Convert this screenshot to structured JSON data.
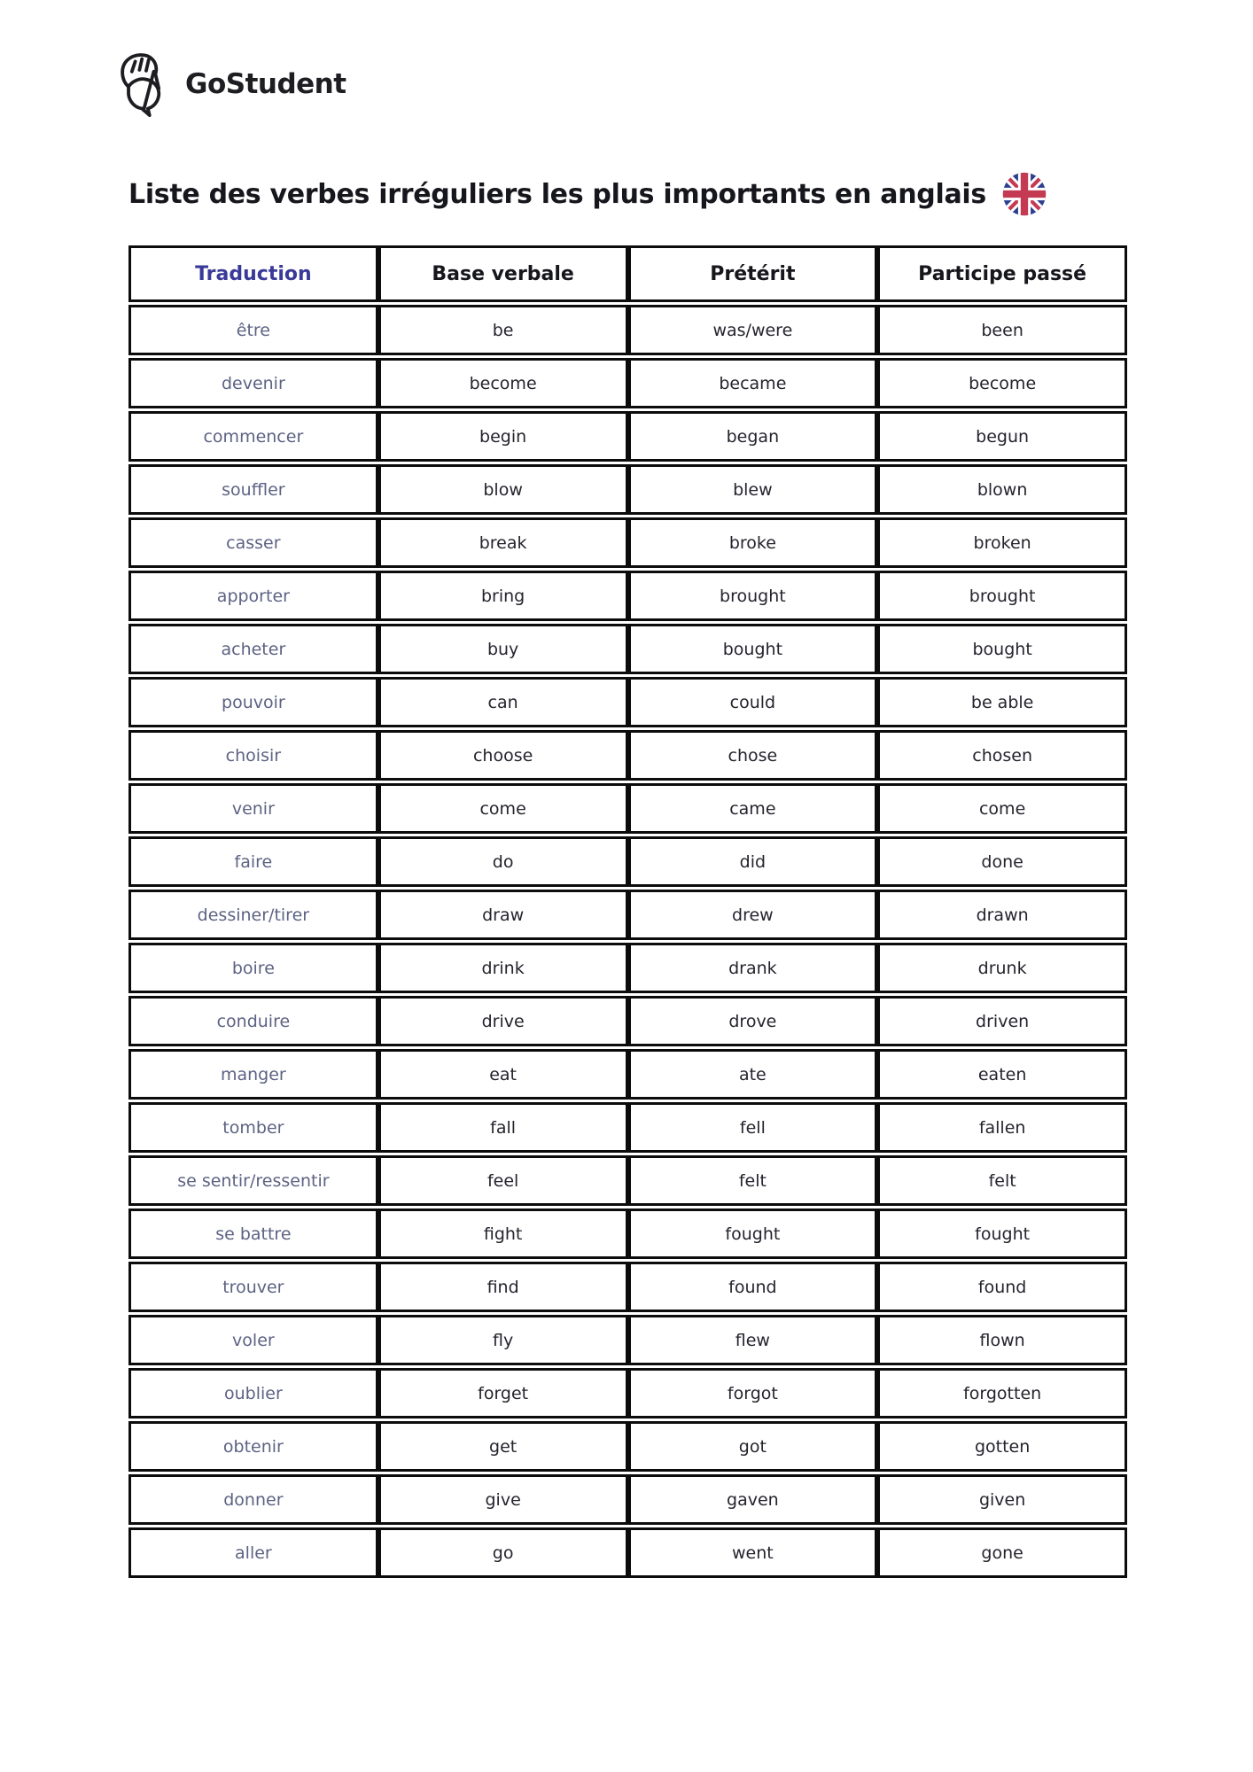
{
  "logo": {
    "brand": "GoStudent",
    "icon": "gostudent-logo-icon"
  },
  "title": "Liste des verbes irréguliers les plus importants en anglais",
  "title_flag_icon": "uk-flag-icon",
  "colors": {
    "accent_header": "#3a3a99",
    "french_text": "#5c6383",
    "dark_text": "#24242d",
    "border": "#0c0c0c",
    "flag_blue": "#2c3e8e",
    "flag_red": "#c43a52"
  },
  "table": {
    "headers": [
      "Traduction",
      "Base verbale",
      "Prétérit",
      "Participe passé"
    ],
    "rows": [
      [
        "être",
        "be",
        "was/were",
        "been"
      ],
      [
        "devenir",
        "become",
        "became",
        "become"
      ],
      [
        "commencer",
        "begin",
        "began",
        "begun"
      ],
      [
        "souffler",
        "blow",
        "blew",
        "blown"
      ],
      [
        "casser",
        "break",
        "broke",
        "broken"
      ],
      [
        "apporter",
        "bring",
        "brought",
        "brought"
      ],
      [
        "acheter",
        "buy",
        "bought",
        "bought"
      ],
      [
        "pouvoir",
        "can",
        "could",
        "be able"
      ],
      [
        "choisir",
        "choose",
        "chose",
        "chosen"
      ],
      [
        "venir",
        "come",
        "came",
        "come"
      ],
      [
        "faire",
        "do",
        "did",
        "done"
      ],
      [
        "dessiner/tirer",
        "draw",
        "drew",
        "drawn"
      ],
      [
        "boire",
        "drink",
        "drank",
        "drunk"
      ],
      [
        "conduire",
        "drive",
        "drove",
        "driven"
      ],
      [
        "manger",
        "eat",
        "ate",
        "eaten"
      ],
      [
        "tomber",
        "fall",
        "fell",
        "fallen"
      ],
      [
        "se sentir/ressentir",
        "feel",
        "felt",
        "felt"
      ],
      [
        "se battre",
        "fight",
        "fought",
        "fought"
      ],
      [
        "trouver",
        "find",
        "found",
        "found"
      ],
      [
        "voler",
        "fly",
        "flew",
        "flown"
      ],
      [
        "oublier",
        "forget",
        "forgot",
        "forgotten"
      ],
      [
        "obtenir",
        "get",
        "got",
        "gotten"
      ],
      [
        "donner",
        "give",
        "gaven",
        "given"
      ],
      [
        "aller",
        "go",
        "went",
        "gone"
      ]
    ]
  }
}
